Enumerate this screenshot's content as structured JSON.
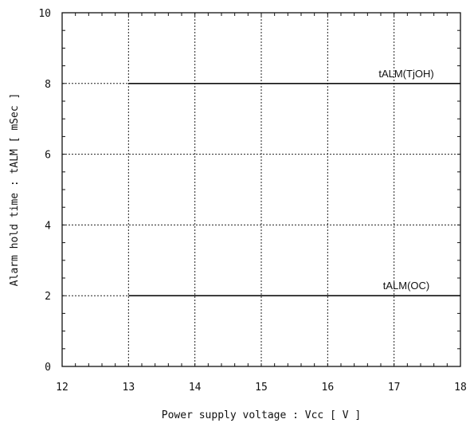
{
  "chart_data": {
    "type": "line",
    "title": "",
    "xlabel": "Power supply voltage : Vcc [ V ]",
    "ylabel": "Alarm hold time : tALM [ mSec ]",
    "xlim": [
      12,
      18
    ],
    "ylim": [
      0,
      10
    ],
    "xticks": [
      "12",
      "13",
      "14",
      "15",
      "16",
      "17",
      "18"
    ],
    "yticks": [
      "0",
      "2",
      "4",
      "6",
      "8",
      "10"
    ],
    "grid": true,
    "series": [
      {
        "name": "tALM(TjOH)",
        "x": [
          13,
          18
        ],
        "y": [
          8,
          8
        ]
      },
      {
        "name": "tALM(OC)",
        "x": [
          13,
          18
        ],
        "y": [
          2,
          2
        ]
      }
    ]
  }
}
